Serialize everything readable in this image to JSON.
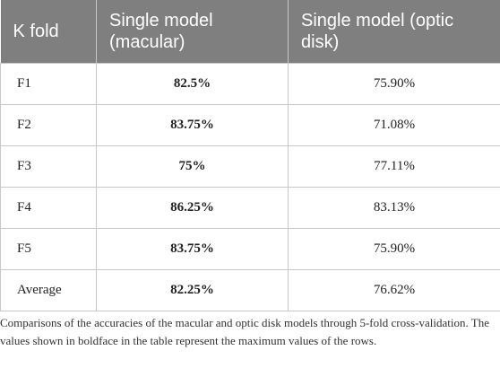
{
  "table": {
    "headers": {
      "kfold_line1": "K fold",
      "macular_line1": "Single model",
      "macular_line2": "(macular)",
      "optic_line1": "Single model (optic",
      "optic_line2": "disk)"
    },
    "rows": [
      {
        "fold": "F1",
        "macular": "82.5%",
        "optic": "75.90%"
      },
      {
        "fold": "F2",
        "macular": "83.75%",
        "optic": "71.08%"
      },
      {
        "fold": "F3",
        "macular": "75%",
        "optic": "77.11%"
      },
      {
        "fold": "F4",
        "macular": "86.25%",
        "optic": "83.13%"
      },
      {
        "fold": "F5",
        "macular": "83.75%",
        "optic": "75.90%"
      },
      {
        "fold": "Average",
        "macular": "82.25%",
        "optic": "76.62%"
      }
    ]
  },
  "caption": "Comparisons of the accuracies of the macular and optic disk models through 5-fold cross-validation. The values shown in boldface in the table represent the maximum values of the rows.",
  "colors": {
    "header_background": "#7f7f7f",
    "header_text": "#ffffff",
    "grid_line": "#c8c8c8"
  }
}
